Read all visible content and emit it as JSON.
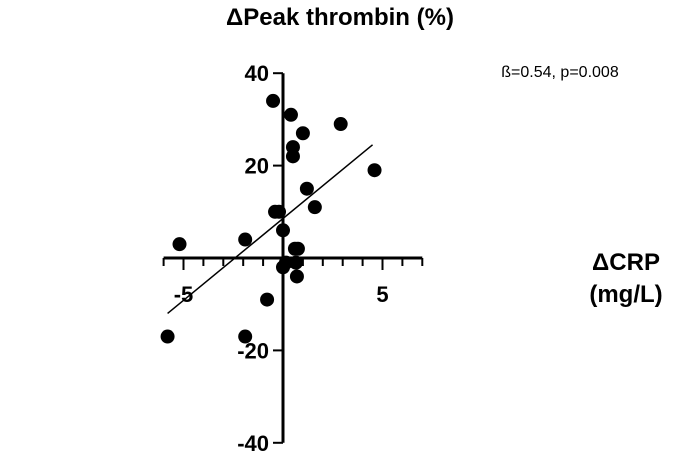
{
  "chart_data": {
    "type": "scatter",
    "title": "ΔPeak thrombin (%)",
    "xlabel": "ΔCRP",
    "xlabel_unit": "(mg/L)",
    "ylabel": "ΔPeak thrombin (%)",
    "annotation": "ß=0.54, p=0.008",
    "xlim": [
      -6,
      7
    ],
    "ylim": [
      -40,
      40
    ],
    "x_ticks": [
      -5,
      5
    ],
    "x_minor_ticks": [
      -6,
      -5,
      -4,
      -3,
      -2,
      -1,
      0,
      1,
      2,
      3,
      4,
      5,
      6,
      7
    ],
    "y_ticks": [
      -40,
      -20,
      20,
      40
    ],
    "y_tick_labels": [
      "-40",
      "-20",
      "20",
      "40"
    ],
    "x_tick_labels": [
      "-5",
      "5"
    ],
    "grid": false,
    "fit_line": {
      "x": [
        -5.8,
        4.5
      ],
      "y": [
        -12,
        24.5
      ]
    },
    "points": [
      {
        "x": -5.8,
        "y": -17
      },
      {
        "x": -5.2,
        "y": 3
      },
      {
        "x": -1.9,
        "y": 4
      },
      {
        "x": -1.9,
        "y": -17
      },
      {
        "x": -0.8,
        "y": -9
      },
      {
        "x": -0.5,
        "y": 34
      },
      {
        "x": -0.4,
        "y": 10
      },
      {
        "x": -0.2,
        "y": 10
      },
      {
        "x": 0.0,
        "y": 6
      },
      {
        "x": 0.0,
        "y": -2
      },
      {
        "x": 0.15,
        "y": -1
      },
      {
        "x": 0.4,
        "y": 31
      },
      {
        "x": 0.5,
        "y": 24
      },
      {
        "x": 0.5,
        "y": 22
      },
      {
        "x": 0.6,
        "y": 2
      },
      {
        "x": 0.65,
        "y": -1
      },
      {
        "x": 0.75,
        "y": 2
      },
      {
        "x": 0.7,
        "y": -4
      },
      {
        "x": 1.0,
        "y": 27
      },
      {
        "x": 1.2,
        "y": 15
      },
      {
        "x": 1.6,
        "y": 11
      },
      {
        "x": 2.9,
        "y": 29
      },
      {
        "x": 4.6,
        "y": 19
      }
    ]
  }
}
